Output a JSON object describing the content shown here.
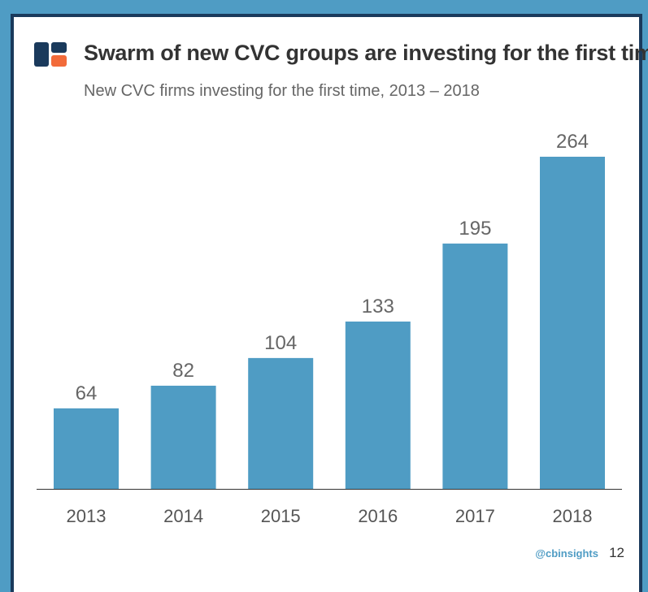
{
  "header": {
    "title": "Swarm of new CVC groups are investing for the first time",
    "subtitle": "New CVC firms investing for the first time, 2013 – 2018"
  },
  "footer": {
    "handle": "@cbinsights",
    "page_number": "12"
  },
  "colors": {
    "bar": "#4f9cc4",
    "background": "#4f9cc4",
    "frame": "#1a3a5c",
    "logo_navy": "#1a3a5c",
    "logo_orange": "#f26b3a"
  },
  "chart_data": {
    "type": "bar",
    "title": "Swarm of new CVC groups are investing for the first time",
    "subtitle": "New CVC firms investing for the first time, 2013 – 2018",
    "categories": [
      "2013",
      "2014",
      "2015",
      "2016",
      "2017",
      "2018"
    ],
    "values": [
      64,
      82,
      104,
      133,
      195,
      264
    ],
    "xlabel": "",
    "ylabel": "",
    "ylim": [
      0,
      264
    ],
    "grid": false,
    "data_labels": true
  }
}
